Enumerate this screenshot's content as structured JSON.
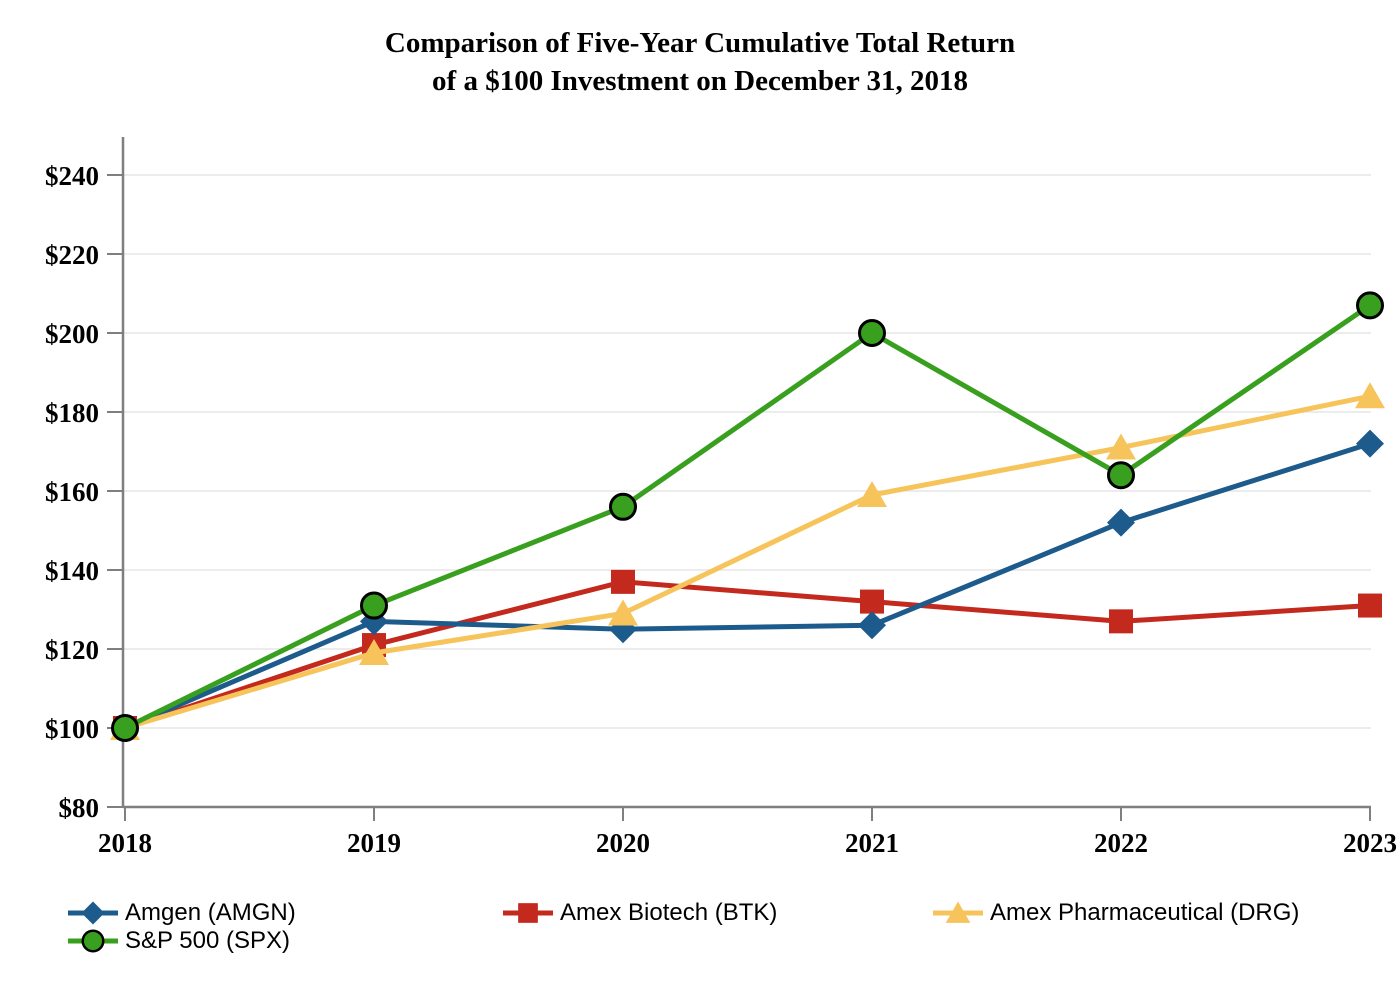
{
  "chart_data": {
    "type": "line",
    "title_lines": [
      "Comparison of Five-Year Cumulative Total Return",
      "of a $100 Investment on December 31, 2018"
    ],
    "x_categories": [
      "2018",
      "2019",
      "2020",
      "2021",
      "2022",
      "2023"
    ],
    "series": [
      {
        "name": "Amgen (AMGN)",
        "marker": "diamond",
        "color": "#1D5B8C",
        "values": [
          100,
          127,
          125,
          126,
          152,
          172
        ]
      },
      {
        "name": "Amex Biotech (BTK)",
        "marker": "square",
        "color": "#C3291D",
        "values": [
          100,
          121,
          137,
          132,
          127,
          131
        ]
      },
      {
        "name": "Amex Pharmaceutical (DRG)",
        "marker": "triangle",
        "color": "#F6C45A",
        "values": [
          100,
          119,
          129,
          159,
          171,
          184
        ]
      },
      {
        "name": "S&P 500 (SPX)",
        "marker": "circle",
        "color": "#38A01E",
        "marker_outline": "#000000",
        "values": [
          100,
          131,
          156,
          200,
          164,
          207
        ]
      }
    ],
    "y_axis": {
      "min": 80,
      "max": 240,
      "tick_step": 20,
      "tick_prefix": "$",
      "tick_labels": [
        "$80",
        "$100",
        "$120",
        "$140",
        "$160",
        "$180",
        "$200",
        "$220",
        "$240"
      ]
    },
    "x_axis": {
      "tick_labels": [
        "2018",
        "2019",
        "2020",
        "2021",
        "2022",
        "2023"
      ]
    },
    "grid": {
      "horizontal": true,
      "vertical": false
    },
    "legend": {
      "position": "bottom-left",
      "entries": [
        "Amgen (AMGN)",
        "Amex Biotech (BTK)",
        "Amex Pharmaceutical (DRG)",
        "S&P 500 (SPX)"
      ]
    },
    "colors": {
      "axis": "#7F7F7F",
      "gridline": "#E5E5E5",
      "text": "#000000",
      "background": "#FFFFFF"
    }
  }
}
